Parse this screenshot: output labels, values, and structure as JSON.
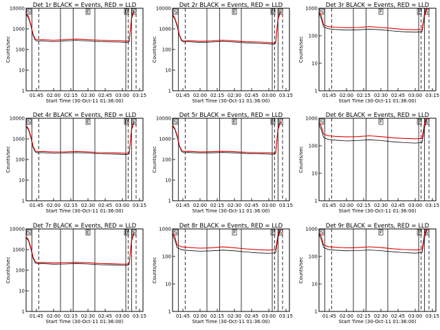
{
  "figure": {
    "background": "#ffffff",
    "colors": {
      "events": "#000000",
      "lld": "#e00000"
    }
  },
  "chart_data": [
    {
      "type": "line",
      "title": "Det 1r BLACK = Events, RED = LLD",
      "xlabel": "Start Time (30-Oct-11 01:36:00)",
      "ylabel": "Counts/sec",
      "yscale": "log",
      "ylim": [
        1,
        10000
      ],
      "yticks": [
        "1",
        "10",
        "100",
        "1000",
        "10000"
      ],
      "xticks": [
        "01:45",
        "02:00",
        "02:15",
        "02:30",
        "02:45",
        "03:00",
        "03:15"
      ],
      "markers": [
        "S",
        "E",
        "D",
        "S"
      ],
      "series": [
        {
          "name": "BLACK",
          "color": "#000000",
          "x": [
            "01:36",
            "01:38",
            "01:40",
            "01:42",
            "01:44",
            "01:46",
            "01:50",
            "02:00",
            "02:10",
            "02:20",
            "02:30",
            "02:40",
            "02:50",
            "02:58",
            "03:04",
            "03:06",
            "03:08",
            "03:10"
          ],
          "y": [
            5000,
            3500,
            1500,
            500,
            280,
            250,
            260,
            240,
            260,
            280,
            260,
            240,
            235,
            230,
            220,
            240,
            3000,
            7000
          ]
        },
        {
          "name": "RED",
          "color": "#e00000",
          "x": [
            "01:36",
            "01:38",
            "01:40",
            "01:42",
            "01:44",
            "01:46",
            "01:50",
            "02:00",
            "02:10",
            "02:20",
            "02:30",
            "02:40",
            "02:50",
            "02:58",
            "03:04",
            "03:06",
            "03:08",
            "03:10"
          ],
          "y": [
            5600,
            4000,
            1700,
            560,
            320,
            290,
            300,
            280,
            300,
            320,
            300,
            280,
            270,
            265,
            255,
            280,
            3500,
            8000
          ]
        }
      ]
    },
    {
      "type": "line",
      "title": "Det 2r BLACK = Events, RED = LLD",
      "xlabel": "Start Time (30-Oct-11 01:36:00)",
      "ylabel": "Counts/sec",
      "yscale": "log",
      "ylim": [
        1,
        10000
      ],
      "yticks": [
        "1",
        "10",
        "100",
        "1000",
        "10000"
      ],
      "xticks": [
        "01:45",
        "02:00",
        "02:15",
        "02:30",
        "02:45",
        "03:00",
        "03:15"
      ],
      "markers": [
        "S",
        "E",
        "D",
        "S"
      ],
      "series": [
        {
          "name": "BLACK",
          "color": "#000000",
          "x": [
            "01:36",
            "01:38",
            "01:40",
            "01:42",
            "01:44",
            "01:46",
            "01:50",
            "02:00",
            "02:10",
            "02:20",
            "02:30",
            "02:40",
            "02:50",
            "02:58",
            "03:04",
            "03:06",
            "03:08",
            "03:10"
          ],
          "y": [
            4500,
            3000,
            1300,
            450,
            260,
            230,
            240,
            220,
            230,
            250,
            230,
            210,
            200,
            190,
            180,
            200,
            2800,
            6500
          ]
        },
        {
          "name": "RED",
          "color": "#e00000",
          "x": [
            "01:36",
            "01:38",
            "01:40",
            "01:42",
            "01:44",
            "01:46",
            "01:50",
            "02:00",
            "02:10",
            "02:20",
            "02:30",
            "02:40",
            "02:50",
            "02:58",
            "03:04",
            "03:06",
            "03:08",
            "03:10"
          ],
          "y": [
            5000,
            3400,
            1500,
            500,
            290,
            260,
            270,
            250,
            260,
            285,
            260,
            240,
            230,
            220,
            205,
            230,
            3200,
            7500
          ]
        }
      ]
    },
    {
      "type": "line",
      "title": "Det 3r BLACK = Events, RED = LLD",
      "xlabel": "Start Time (30-Oct-11 01:36:00)",
      "ylabel": "Counts/sec",
      "yscale": "log",
      "ylim": [
        1,
        1000
      ],
      "yticks": [
        "1",
        "10",
        "100",
        "1000"
      ],
      "xticks": [
        "01:45",
        "02:00",
        "02:15",
        "02:30",
        "02:45",
        "03:00",
        "03:15"
      ],
      "markers": [
        "S",
        "F",
        "E",
        "S"
      ],
      "series": [
        {
          "name": "BLACK",
          "color": "#000000",
          "x": [
            "01:36",
            "01:38",
            "01:40",
            "01:44",
            "01:50",
            "02:00",
            "02:10",
            "02:20",
            "02:30",
            "02:40",
            "02:50",
            "03:00",
            "03:06",
            "03:08",
            "03:10"
          ],
          "y": [
            650,
            420,
            210,
            180,
            170,
            160,
            165,
            175,
            165,
            150,
            140,
            135,
            140,
            500,
            950
          ]
        },
        {
          "name": "RED",
          "color": "#e00000",
          "x": [
            "01:36",
            "01:38",
            "01:40",
            "01:44",
            "01:50",
            "02:00",
            "02:10",
            "02:20",
            "02:30",
            "02:40",
            "02:50",
            "03:00",
            "03:06",
            "03:08",
            "03:10"
          ],
          "y": [
            800,
            520,
            250,
            215,
            205,
            195,
            200,
            215,
            200,
            185,
            170,
            165,
            170,
            600,
            1000
          ]
        }
      ]
    },
    {
      "type": "line",
      "title": "Det 4r BLACK = Events, RED = LLD",
      "xlabel": "Start Time (30-Oct-11 01:36:00)",
      "ylabel": "Counts/sec",
      "yscale": "log",
      "ylim": [
        1,
        10000
      ],
      "yticks": [
        "1",
        "10",
        "100",
        "1000",
        "10000"
      ],
      "xticks": [
        "01:45",
        "02:00",
        "02:15",
        "02:30",
        "02:45",
        "03:00",
        "03:15"
      ],
      "markers": [
        "S",
        "E",
        "D",
        "S"
      ],
      "series": [
        {
          "name": "BLACK",
          "color": "#000000",
          "x": [
            "01:36",
            "01:38",
            "01:40",
            "01:42",
            "01:44",
            "01:46",
            "01:50",
            "02:00",
            "02:10",
            "02:20",
            "02:30",
            "02:40",
            "02:50",
            "02:58",
            "03:04",
            "03:06",
            "03:08",
            "03:10"
          ],
          "y": [
            4000,
            2800,
            1200,
            400,
            230,
            210,
            215,
            200,
            205,
            215,
            205,
            190,
            185,
            180,
            175,
            190,
            2600,
            6000
          ]
        },
        {
          "name": "RED",
          "color": "#e00000",
          "x": [
            "01:36",
            "01:38",
            "01:40",
            "01:42",
            "01:44",
            "01:46",
            "01:50",
            "02:00",
            "02:10",
            "02:20",
            "02:30",
            "02:40",
            "02:50",
            "02:58",
            "03:04",
            "03:06",
            "03:08",
            "03:10"
          ],
          "y": [
            4500,
            3100,
            1400,
            450,
            260,
            240,
            245,
            230,
            235,
            245,
            235,
            215,
            210,
            205,
            200,
            215,
            3000,
            7000
          ]
        }
      ]
    },
    {
      "type": "line",
      "title": "Det 5r BLACK = Events, RED = LLD",
      "xlabel": "Start Time (30-Oct-11 01:36:00)",
      "ylabel": "Counts/sec",
      "yscale": "log",
      "ylim": [
        1,
        10000
      ],
      "yticks": [
        "1",
        "10",
        "100",
        "1000",
        "10000"
      ],
      "xticks": [
        "01:45",
        "02:00",
        "02:15",
        "02:30",
        "02:45",
        "03:00",
        "03:15"
      ],
      "markers": [
        "S",
        "E",
        "D",
        "S"
      ],
      "series": [
        {
          "name": "BLACK",
          "color": "#000000",
          "x": [
            "01:36",
            "01:38",
            "01:40",
            "01:42",
            "01:44",
            "01:46",
            "01:50",
            "02:00",
            "02:10",
            "02:20",
            "02:30",
            "02:40",
            "02:50",
            "02:58",
            "03:04",
            "03:06",
            "03:08",
            "03:10"
          ],
          "y": [
            4200,
            2900,
            1250,
            420,
            240,
            215,
            220,
            205,
            210,
            220,
            210,
            195,
            190,
            185,
            180,
            195,
            2700,
            6200
          ]
        },
        {
          "name": "RED",
          "color": "#e00000",
          "x": [
            "01:36",
            "01:38",
            "01:40",
            "01:42",
            "01:44",
            "01:46",
            "01:50",
            "02:00",
            "02:10",
            "02:20",
            "02:30",
            "02:40",
            "02:50",
            "02:58",
            "03:04",
            "03:06",
            "03:08",
            "03:10"
          ],
          "y": [
            4700,
            3200,
            1450,
            470,
            270,
            245,
            250,
            235,
            240,
            250,
            240,
            222,
            215,
            210,
            205,
            220,
            3100,
            7200
          ]
        }
      ]
    },
    {
      "type": "line",
      "title": "Det 6r BLACK = Events, RED = LLD",
      "xlabel": "Start Time (30-Oct-11 01:36:00)",
      "ylabel": "Counts/sec",
      "yscale": "log",
      "ylim": [
        1,
        1000
      ],
      "yticks": [
        "1",
        "10",
        "100",
        "1000"
      ],
      "xticks": [
        "01:45",
        "02:00",
        "02:15",
        "02:30",
        "02:45",
        "03:00",
        "03:15"
      ],
      "markers": [
        "S",
        "F",
        "E",
        "S"
      ],
      "series": [
        {
          "name": "BLACK",
          "color": "#000000",
          "x": [
            "01:36",
            "01:38",
            "01:40",
            "01:44",
            "01:50",
            "02:00",
            "02:10",
            "02:20",
            "02:30",
            "02:40",
            "02:50",
            "03:00",
            "03:06",
            "03:08",
            "03:10"
          ],
          "y": [
            600,
            380,
            200,
            170,
            160,
            150,
            155,
            165,
            155,
            140,
            130,
            125,
            130,
            450,
            900
          ]
        },
        {
          "name": "RED",
          "color": "#e00000",
          "x": [
            "01:36",
            "01:38",
            "01:40",
            "01:44",
            "01:50",
            "02:00",
            "02:10",
            "02:20",
            "02:30",
            "02:40",
            "02:50",
            "03:00",
            "03:06",
            "03:08",
            "03:10"
          ],
          "y": [
            780,
            500,
            265,
            230,
            220,
            210,
            215,
            230,
            215,
            195,
            185,
            180,
            185,
            620,
            1000
          ]
        }
      ]
    },
    {
      "type": "line",
      "title": "Det 7r BLACK = Events, RED = LLD",
      "xlabel": "Start Time (30-Oct-11 01:36:00)",
      "ylabel": "Counts/sec",
      "yscale": "log",
      "ylim": [
        1,
        10000
      ],
      "yticks": [
        "1",
        "10",
        "100",
        "1000",
        "10000"
      ],
      "xticks": [
        "01:45",
        "02:00",
        "02:15",
        "02:30",
        "02:45",
        "03:00",
        "03:15"
      ],
      "markers": [
        "S",
        "E",
        "D",
        "S"
      ],
      "series": [
        {
          "name": "BLACK",
          "color": "#000000",
          "x": [
            "01:36",
            "01:38",
            "01:40",
            "01:42",
            "01:44",
            "01:46",
            "01:50",
            "02:00",
            "02:10",
            "02:20",
            "02:30",
            "02:40",
            "02:50",
            "02:58",
            "03:04",
            "03:06",
            "03:08",
            "03:10"
          ],
          "y": [
            3800,
            2700,
            1150,
            390,
            225,
            205,
            210,
            195,
            200,
            210,
            200,
            185,
            180,
            175,
            170,
            185,
            2500,
            5800
          ]
        },
        {
          "name": "RED",
          "color": "#e00000",
          "x": [
            "01:36",
            "01:38",
            "01:40",
            "01:42",
            "01:44",
            "01:46",
            "01:50",
            "02:00",
            "02:10",
            "02:20",
            "02:30",
            "02:40",
            "02:50",
            "02:58",
            "03:04",
            "03:06",
            "03:08",
            "03:10"
          ],
          "y": [
            4300,
            3000,
            1350,
            440,
            255,
            235,
            240,
            225,
            230,
            240,
            230,
            210,
            205,
            200,
            195,
            210,
            2900,
            6800
          ]
        }
      ]
    },
    {
      "type": "line",
      "title": "Det 8r BLACK = Events, RED = LLD",
      "xlabel": "Start Time (30-Oct-11 01:36:00)",
      "ylabel": "Counts/sec",
      "yscale": "log",
      "ylim": [
        1,
        1000
      ],
      "yticks": [
        "1",
        "10",
        "100",
        "1000"
      ],
      "xticks": [
        "01:45",
        "02:00",
        "02:15",
        "02:30",
        "02:45",
        "03:00",
        "03:15"
      ],
      "markers": [
        "S",
        "F",
        "E",
        "S"
      ],
      "series": [
        {
          "name": "BLACK",
          "color": "#000000",
          "x": [
            "01:36",
            "01:38",
            "01:40",
            "01:44",
            "01:50",
            "02:00",
            "02:10",
            "02:20",
            "02:30",
            "02:40",
            "02:50",
            "03:00",
            "03:06",
            "03:08",
            "03:10"
          ],
          "y": [
            620,
            400,
            205,
            175,
            165,
            155,
            160,
            170,
            160,
            145,
            135,
            130,
            135,
            470,
            920
          ]
        },
        {
          "name": "RED",
          "color": "#e00000",
          "x": [
            "01:36",
            "01:38",
            "01:40",
            "01:44",
            "01:50",
            "02:00",
            "02:10",
            "02:20",
            "02:30",
            "02:40",
            "02:50",
            "03:00",
            "03:06",
            "03:08",
            "03:10"
          ],
          "y": [
            790,
            510,
            258,
            222,
            212,
            200,
            207,
            222,
            207,
            188,
            176,
            170,
            176,
            610,
            1000
          ]
        }
      ]
    },
    {
      "type": "line",
      "title": "Det 9r BLACK = Events, RED = LLD",
      "xlabel": "Start Time (30-Oct-11 01:36:00)",
      "ylabel": "Counts/sec",
      "yscale": "log",
      "ylim": [
        1,
        1000
      ],
      "yticks": [
        "1",
        "10",
        "100",
        "1000"
      ],
      "xticks": [
        "01:45",
        "02:00",
        "02:15",
        "02:30",
        "02:45",
        "03:00",
        "03:15"
      ],
      "markers": [
        "S",
        "F",
        "E",
        "S"
      ],
      "series": [
        {
          "name": "BLACK",
          "color": "#000000",
          "x": [
            "01:36",
            "01:38",
            "01:40",
            "01:44",
            "01:50",
            "02:00",
            "02:10",
            "02:20",
            "02:30",
            "02:40",
            "02:50",
            "03:00",
            "03:06",
            "03:08",
            "03:10"
          ],
          "y": [
            640,
            410,
            210,
            180,
            170,
            160,
            163,
            172,
            162,
            148,
            138,
            132,
            138,
            480,
            930
          ]
        },
        {
          "name": "RED",
          "color": "#e00000",
          "x": [
            "01:36",
            "01:38",
            "01:40",
            "01:44",
            "01:50",
            "02:00",
            "02:10",
            "02:20",
            "02:30",
            "02:40",
            "02:50",
            "03:00",
            "03:06",
            "03:08",
            "03:10"
          ],
          "y": [
            800,
            520,
            262,
            226,
            216,
            205,
            210,
            224,
            210,
            191,
            178,
            172,
            178,
            620,
            1000
          ]
        }
      ]
    }
  ]
}
